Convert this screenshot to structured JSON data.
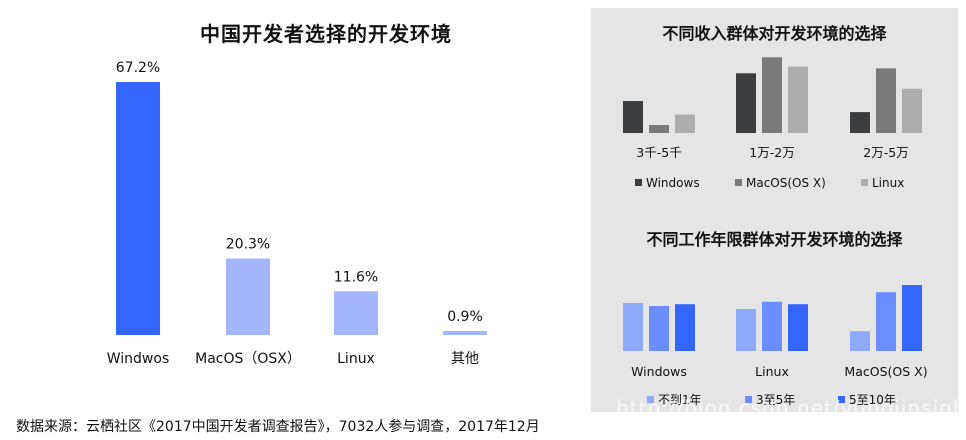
{
  "main_title": "中国开发者选择的开发环境",
  "source_note": "数据来源：云栖社区《2017中国开发者调查报告》，7032人参与调查，2017年12月",
  "watermark": "http://blog.csdn.net/yunqiinsight",
  "panel1_title": "不同收入群体对开发环境的选择",
  "panel2_title": "不同工作年限群体对开发环境的选择",
  "colors": {
    "main_primary": "#3465fe",
    "main_secondary": "#a3b6fb",
    "win": "#3a3c3e",
    "mac": "#7a7a7a",
    "linux": "#adadad",
    "y1": "#8fa9fd",
    "y3": "#6b8dfd",
    "y5": "#3466fd"
  },
  "chart_data": [
    {
      "type": "bar",
      "title": "中国开发者选择的开发环境",
      "categories": [
        "Windwos",
        "MacOS（OSX）",
        "Linux",
        "其他"
      ],
      "values": [
        67.2,
        20.3,
        11.6,
        0.9
      ],
      "value_labels": [
        "67.2%",
        "20.3%",
        "11.6%",
        "0.9%"
      ],
      "ylim": [
        0,
        70
      ],
      "grid": false
    },
    {
      "type": "bar",
      "title": "不同收入群体对开发环境的选择",
      "categories": [
        "3千-5千",
        "1万-2万",
        "2万-5万"
      ],
      "series": [
        {
          "name": "Windows",
          "values": [
            52,
            97,
            34
          ]
        },
        {
          "name": "MacOS(OS X)",
          "values": [
            13,
            123,
            105
          ]
        },
        {
          "name": "Linux",
          "values": [
            30,
            108,
            72
          ]
        }
      ],
      "legend": "bottom",
      "ylim": [
        0,
        130
      ]
    },
    {
      "type": "bar",
      "title": "不同工作年限群体对开发环境的选择",
      "categories": [
        "Windows",
        "Linux",
        "MacOS(OS X)"
      ],
      "series": [
        {
          "name": "不到1年",
          "values": [
            80,
            70,
            33
          ]
        },
        {
          "name": "3至5年",
          "values": [
            75,
            82,
            98
          ]
        },
        {
          "name": "5至10年",
          "values": [
            78,
            78,
            110
          ]
        }
      ],
      "legend": "bottom",
      "ylim": [
        0,
        130
      ]
    }
  ]
}
